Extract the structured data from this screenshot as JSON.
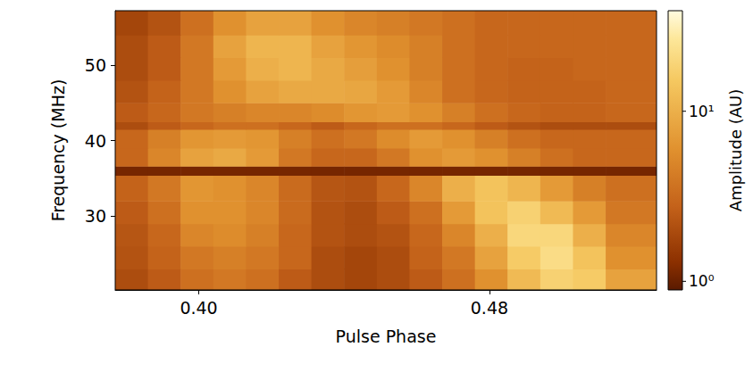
{
  "chart_data": {
    "type": "heatmap",
    "x_label": "Pulse Phase",
    "y_label": "Frequency (MHz)",
    "xlim": [
      0.377,
      0.526
    ],
    "ylim": [
      20.2,
      57.2
    ],
    "xticks": [
      {
        "value": 0.4,
        "label": "0.40"
      },
      {
        "value": 0.48,
        "label": "0.48"
      }
    ],
    "yticks": [
      30,
      40,
      50
    ],
    "x_edges": [
      0.377,
      0.386,
      0.395,
      0.404,
      0.413,
      0.422,
      0.431,
      0.44,
      0.449,
      0.458,
      0.467,
      0.476,
      0.485,
      0.494,
      0.503,
      0.512,
      0.526
    ],
    "y_edges": [
      20.2,
      23,
      26,
      29,
      32,
      35.4,
      36.6,
      39,
      41.5,
      42.5,
      45,
      48,
      51,
      54,
      57.2
    ],
    "cells": [
      [
        2.0,
        2.5,
        3.5,
        4,
        3.5,
        2.5,
        2,
        1.8,
        2,
        2.5,
        3.5,
        6,
        12,
        18,
        16,
        8
      ],
      [
        2.2,
        2.8,
        4,
        4.5,
        4,
        3,
        2,
        1.8,
        2,
        2.8,
        4,
        8,
        16,
        22,
        14,
        6
      ],
      [
        2.3,
        3,
        5,
        5.5,
        4.5,
        3,
        2.2,
        2,
        2.2,
        3,
        5,
        10,
        20,
        20,
        10,
        5
      ],
      [
        2.5,
        3.5,
        6,
        6,
        5,
        3.2,
        2.2,
        2,
        2.5,
        3.5,
        7,
        14,
        18,
        12,
        7,
        4
      ],
      [
        2.8,
        4,
        6.5,
        6,
        5,
        3.2,
        2.3,
        2.2,
        3,
        5,
        10,
        14,
        11,
        7,
        4.5,
        3.5
      ],
      [
        1.1,
        1.1,
        1.1,
        1.1,
        1.1,
        1.1,
        1.1,
        1.1,
        1.1,
        1.1,
        1.1,
        1.1,
        1.1,
        1.1,
        1.1,
        1.1
      ],
      [
        3,
        5,
        8,
        9,
        7,
        4,
        3,
        3,
        4,
        6,
        7,
        6,
        4.5,
        3.5,
        3,
        3
      ],
      [
        3,
        4.5,
        6.5,
        7,
        6.5,
        4.5,
        3.5,
        4,
        5.5,
        7,
        6,
        4.5,
        3.5,
        3,
        3,
        3
      ],
      [
        2,
        2.5,
        3,
        3.5,
        3.5,
        3,
        2.5,
        3,
        3.5,
        3.5,
        3,
        2.5,
        2.2,
        2,
        2,
        2
      ],
      [
        2.5,
        3,
        4,
        4.5,
        5,
        5,
        5.5,
        6.5,
        7,
        6,
        4.5,
        3.5,
        3,
        2.8,
        2.8,
        3
      ],
      [
        2.2,
        2.8,
        4,
        6,
        8,
        9,
        9,
        8.5,
        7,
        5,
        3.5,
        3,
        2.8,
        2.8,
        2.8,
        3
      ],
      [
        2,
        2.5,
        4,
        7,
        10,
        11,
        9,
        7.5,
        6,
        4.5,
        3.5,
        3,
        2.8,
        2.8,
        3,
        3
      ],
      [
        2,
        2.5,
        4,
        8,
        11,
        11,
        8,
        6.5,
        5.5,
        4.5,
        3.5,
        3,
        3,
        3,
        3,
        3
      ],
      [
        1.8,
        2.2,
        3.5,
        6,
        8,
        8,
        6,
        5,
        4.5,
        4,
        3.5,
        3,
        3,
        3,
        3,
        3
      ]
    ],
    "colorbar_label": "Amplitude (AU)",
    "colorbar_range": [
      0.89,
      39
    ],
    "colorbar_ticks": [
      {
        "value": 1,
        "label": "10⁰"
      },
      {
        "value": 10,
        "label": "10¹"
      }
    ]
  }
}
